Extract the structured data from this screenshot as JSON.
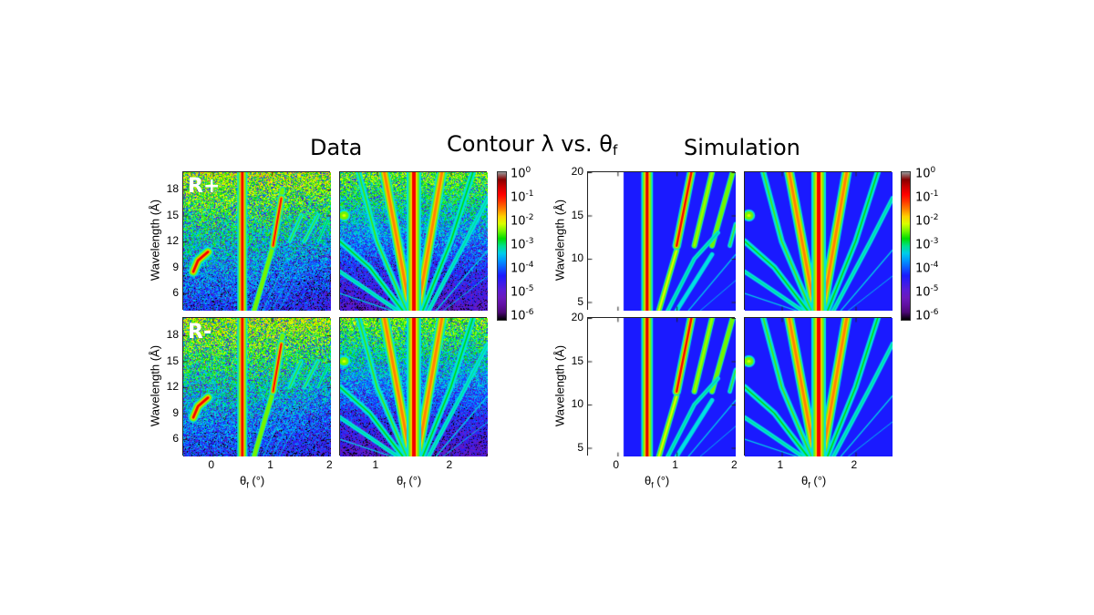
{
  "headers": {
    "data": "Data",
    "simulation": "Simulation",
    "title_main": "Contour λ vs. θ",
    "title_sub": "f"
  },
  "row_labels": [
    "R+",
    "R-"
  ],
  "axis_labels": {
    "ylabel": "Wavelength (Å)",
    "xlabel_symbol": "θ",
    "xlabel_sub": "f",
    "xlabel_unit": " (°)"
  },
  "colorbar": {
    "base": "10",
    "exponents": [
      "0",
      "-1",
      "-2",
      "-3",
      "-4",
      "-5",
      "-6"
    ],
    "range": [
      1e-06,
      1
    ],
    "scale": "log",
    "colormap": [
      "#000000",
      "#6a0a9a",
      "#1a1aff",
      "#00c8ff",
      "#00e000",
      "#ffff00",
      "#ff8000",
      "#ff0000",
      "#7a0000",
      "#909090"
    ]
  },
  "chart_data": [
    {
      "type": "heatmap",
      "group": "Data",
      "row": "R+",
      "xlim": [
        -0.5,
        2
      ],
      "ylim": [
        4,
        20
      ],
      "xticks": [
        "0",
        "1",
        "2"
      ],
      "yticks": [
        "6",
        "9",
        "12",
        "15",
        "18"
      ]
    },
    {
      "type": "heatmap",
      "group": "Data",
      "row": "R+",
      "xlim": [
        0.5,
        2.5
      ],
      "ylim": [
        4,
        20
      ],
      "xticks": [
        "1",
        "2"
      ],
      "yticks": []
    },
    {
      "type": "heatmap",
      "group": "Data",
      "row": "R-",
      "xlim": [
        -0.5,
        2
      ],
      "ylim": [
        4,
        20
      ],
      "xticks": [
        "0",
        "1",
        "2"
      ],
      "yticks": [
        "6",
        "9",
        "12",
        "15",
        "18"
      ]
    },
    {
      "type": "heatmap",
      "group": "Data",
      "row": "R-",
      "xlim": [
        0.5,
        2.5
      ],
      "ylim": [
        4,
        20
      ],
      "xticks": [
        "1",
        "2"
      ],
      "yticks": []
    },
    {
      "type": "heatmap",
      "group": "Simulation",
      "row": "R+",
      "xlim": [
        -0.5,
        2
      ],
      "ylim": [
        4,
        20
      ],
      "xticks": [
        "0",
        "1",
        "2"
      ],
      "yticks": [
        "5",
        "10",
        "15",
        "20"
      ]
    },
    {
      "type": "heatmap",
      "group": "Simulation",
      "row": "R+",
      "xlim": [
        0.5,
        2.5
      ],
      "ylim": [
        4,
        20
      ],
      "xticks": [
        "1",
        "2"
      ],
      "yticks": []
    },
    {
      "type": "heatmap",
      "group": "Simulation",
      "row": "R-",
      "xlim": [
        -0.5,
        2
      ],
      "ylim": [
        4,
        20
      ],
      "xticks": [
        "0",
        "1",
        "2"
      ],
      "yticks": [
        "5",
        "10",
        "15",
        "20"
      ]
    },
    {
      "type": "heatmap",
      "group": "Simulation",
      "row": "R-",
      "xlim": [
        0.5,
        2.5
      ],
      "ylim": [
        4,
        20
      ],
      "xticks": [
        "1",
        "2"
      ],
      "yticks": []
    }
  ]
}
